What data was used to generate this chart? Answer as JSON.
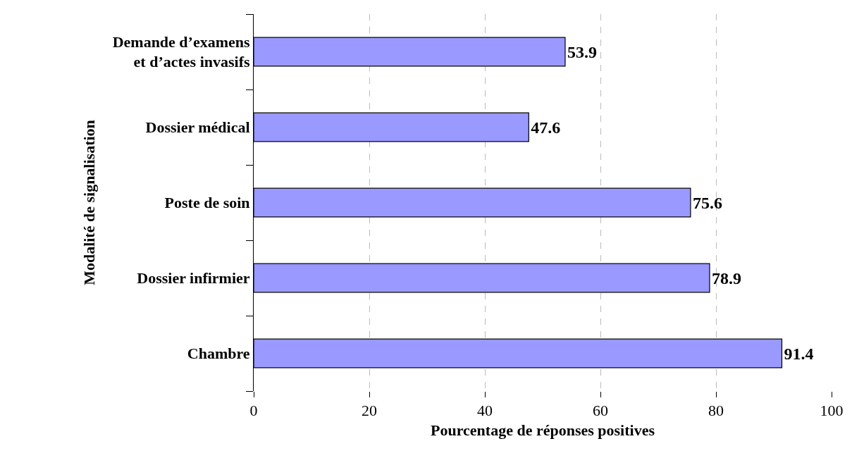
{
  "chart_data": {
    "type": "bar",
    "orientation": "horizontal",
    "xlabel": "Pourcentage de réponses positives",
    "ylabel": "Modalité de signalisation",
    "categories": [
      "Demande d’examens et d’actes invasifs",
      "Dossier médical",
      "Poste de soin",
      "Dossier infirmier",
      "Chambre"
    ],
    "values": [
      53.9,
      47.6,
      75.6,
      78.9,
      91.4
    ],
    "color": "#9999ff",
    "xlim": [
      0,
      100
    ],
    "xticks": [
      0,
      20,
      40,
      60,
      80,
      100
    ],
    "grid": "x",
    "data_labels": true
  }
}
